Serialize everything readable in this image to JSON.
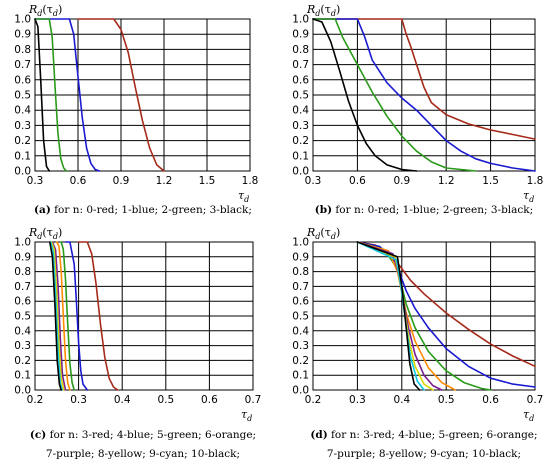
{
  "palette": {
    "red": "#a52a1a",
    "blue": "#1a1ad0",
    "green": "#2a9a1a",
    "black": "#000000",
    "orange": "#ff8c00",
    "purple": "#7a1f8f",
    "yellow": "#d8d800",
    "cyan": "#10c8e0"
  },
  "chart_data": [
    {
      "id": "a",
      "type": "line",
      "ylabel_main": "R",
      "ylabel_sub": "d",
      "ylabel_arg": "(τ",
      "ylabel_arg_sub": "d",
      "ylabel_close": ")",
      "xlabel_main": "τ",
      "xlabel_sub": "d",
      "xlim": [
        0.3,
        1.8
      ],
      "ylim": [
        0,
        1.0
      ],
      "xticks": [
        "0.3",
        "0.6",
        "0.9",
        "1.2",
        "1.5",
        "1.8"
      ],
      "yticks": [
        "0.0",
        "0.1",
        "0.2",
        "0.3",
        "0.4",
        "0.5",
        "0.6",
        "0.7",
        "0.8",
        "0.9",
        "1.0"
      ],
      "caption_label": "(a)",
      "caption_text": " for n: 0-red; 1-blue; 2-green; 3-black;",
      "series": [
        {
          "color": "red",
          "x": [
            0.6,
            0.85,
            0.9,
            0.95,
            1.0,
            1.05,
            1.1,
            1.15,
            1.2
          ],
          "y": [
            1.0,
            1.0,
            0.93,
            0.78,
            0.55,
            0.33,
            0.15,
            0.04,
            0.0
          ]
        },
        {
          "color": "blue",
          "x": [
            0.3,
            0.54,
            0.57,
            0.6,
            0.63,
            0.66,
            0.69,
            0.72,
            0.75
          ],
          "y": [
            1.0,
            1.0,
            0.9,
            0.62,
            0.35,
            0.15,
            0.05,
            0.01,
            0.0
          ]
        },
        {
          "color": "green",
          "x": [
            0.3,
            0.4,
            0.42,
            0.44,
            0.46,
            0.48,
            0.5,
            0.52
          ],
          "y": [
            1.0,
            1.0,
            0.88,
            0.55,
            0.25,
            0.08,
            0.02,
            0.0
          ]
        },
        {
          "color": "black",
          "x": [
            0.3,
            0.32,
            0.34,
            0.36,
            0.38,
            0.4
          ],
          "y": [
            1.0,
            0.95,
            0.6,
            0.2,
            0.03,
            0.0
          ]
        }
      ]
    },
    {
      "id": "b",
      "type": "line",
      "ylabel_main": "R",
      "ylabel_sub": "d",
      "ylabel_arg": "(τ",
      "ylabel_arg_sub": "d",
      "ylabel_close": ")",
      "xlabel_main": "τ",
      "xlabel_sub": "d",
      "xlim": [
        0.3,
        1.8
      ],
      "ylim": [
        0,
        1.0
      ],
      "xticks": [
        "0.3",
        "0.6",
        "0.9",
        "1.2",
        "1.5",
        "1.8"
      ],
      "yticks": [
        "0.0",
        "0.1",
        "0.2",
        "0.3",
        "0.4",
        "0.5",
        "0.6",
        "0.7",
        "0.8",
        "0.9",
        "1.0"
      ],
      "caption_label": "(b)",
      "caption_text": " for n: 0-red; 1-blue; 2-green; 3-black;",
      "series": [
        {
          "color": "red",
          "x": [
            0.3,
            0.9,
            0.93,
            0.96,
            1.0,
            1.05,
            1.1,
            1.2,
            1.35,
            1.5,
            1.65,
            1.8
          ],
          "y": [
            1.0,
            1.0,
            0.9,
            0.82,
            0.7,
            0.55,
            0.45,
            0.37,
            0.31,
            0.27,
            0.24,
            0.21
          ]
        },
        {
          "color": "blue",
          "x": [
            0.3,
            0.6,
            0.65,
            0.7,
            0.8,
            0.9,
            1.0,
            1.1,
            1.2,
            1.3,
            1.4,
            1.5,
            1.65,
            1.8
          ],
          "y": [
            1.0,
            1.0,
            0.88,
            0.73,
            0.58,
            0.48,
            0.4,
            0.3,
            0.2,
            0.13,
            0.08,
            0.05,
            0.02,
            0.0
          ]
        },
        {
          "color": "green",
          "x": [
            0.3,
            0.45,
            0.5,
            0.6,
            0.7,
            0.8,
            0.9,
            1.0,
            1.1,
            1.2,
            1.3,
            1.4
          ],
          "y": [
            1.0,
            1.0,
            0.88,
            0.7,
            0.52,
            0.36,
            0.23,
            0.13,
            0.06,
            0.02,
            0.01,
            0.0
          ]
        },
        {
          "color": "black",
          "x": [
            0.3,
            0.36,
            0.42,
            0.48,
            0.54,
            0.6,
            0.66,
            0.72,
            0.8,
            0.9,
            1.0
          ],
          "y": [
            1.0,
            0.98,
            0.85,
            0.66,
            0.46,
            0.3,
            0.18,
            0.1,
            0.04,
            0.01,
            0.0
          ]
        }
      ]
    },
    {
      "id": "c",
      "type": "line",
      "ylabel_main": "R",
      "ylabel_sub": "d",
      "ylabel_arg": "(τ",
      "ylabel_arg_sub": "d",
      "ylabel_close": ")",
      "xlabel_main": "τ",
      "xlabel_sub": "d",
      "xlim": [
        0.2,
        0.7
      ],
      "ylim": [
        0,
        1.0
      ],
      "xticks": [
        "0.2",
        "0.3",
        "0.4",
        "0.5",
        "0.6",
        "0.7"
      ],
      "yticks": [
        "0.0",
        "0.1",
        "0.2",
        "0.3",
        "0.4",
        "0.5",
        "0.6",
        "0.7",
        "0.8",
        "0.9",
        "1.0"
      ],
      "caption_label": "(c)",
      "caption_text": " for n: 3-red; 4-blue; 5-green; 6-orange;",
      "caption_line2": "7-purple; 8-yellow; 9-cyan; 10-black;",
      "series": [
        {
          "color": "red",
          "x": [
            0.3,
            0.32,
            0.33,
            0.34,
            0.35,
            0.36,
            0.37,
            0.38,
            0.39
          ],
          "y": [
            1.0,
            1.0,
            0.92,
            0.72,
            0.45,
            0.22,
            0.08,
            0.02,
            0.0
          ]
        },
        {
          "color": "blue",
          "x": [
            0.27,
            0.28,
            0.29,
            0.295,
            0.3,
            0.305,
            0.31,
            0.32
          ],
          "y": [
            1.0,
            1.0,
            0.85,
            0.6,
            0.32,
            0.13,
            0.04,
            0.0
          ]
        },
        {
          "color": "green",
          "x": [
            0.26,
            0.265,
            0.27,
            0.275,
            0.28,
            0.285,
            0.29
          ],
          "y": [
            1.0,
            0.95,
            0.75,
            0.45,
            0.18,
            0.05,
            0.0
          ]
        },
        {
          "color": "orange",
          "x": [
            0.25,
            0.255,
            0.26,
            0.265,
            0.27,
            0.275,
            0.28
          ],
          "y": [
            1.0,
            0.97,
            0.8,
            0.5,
            0.2,
            0.05,
            0.0
          ]
        },
        {
          "color": "purple",
          "x": [
            0.24,
            0.247,
            0.253,
            0.258,
            0.263,
            0.27
          ],
          "y": [
            1.0,
            0.95,
            0.7,
            0.35,
            0.1,
            0.0
          ]
        },
        {
          "color": "yellow",
          "x": [
            0.238,
            0.244,
            0.25,
            0.255,
            0.26,
            0.266
          ],
          "y": [
            1.0,
            0.95,
            0.65,
            0.3,
            0.08,
            0.0
          ]
        },
        {
          "color": "cyan",
          "x": [
            0.236,
            0.242,
            0.248,
            0.253,
            0.258,
            0.262
          ],
          "y": [
            1.0,
            0.93,
            0.6,
            0.25,
            0.05,
            0.0
          ]
        },
        {
          "color": "black",
          "x": [
            0.234,
            0.24,
            0.246,
            0.251,
            0.256,
            0.26
          ],
          "y": [
            1.0,
            0.9,
            0.55,
            0.2,
            0.04,
            0.0
          ]
        }
      ]
    },
    {
      "id": "d",
      "type": "line",
      "ylabel_main": "R",
      "ylabel_sub": "d",
      "ylabel_arg": "(τ",
      "ylabel_arg_sub": "d",
      "ylabel_close": ")",
      "xlabel_main": "τ",
      "xlabel_sub": "d",
      "xlim": [
        0.2,
        0.7
      ],
      "ylim": [
        0,
        1.0
      ],
      "xticks": [
        "0.2",
        "0.3",
        "0.4",
        "0.5",
        "0.6",
        "0.7"
      ],
      "yticks": [
        "0.0",
        "0.1",
        "0.2",
        "0.3",
        "0.4",
        "0.5",
        "0.6",
        "0.7",
        "0.8",
        "0.9",
        "1.0"
      ],
      "caption_label": "(d)",
      "caption_text": " for n: 3-red; 4-blue; 5-green; 6-orange;",
      "caption_line2": "7-purple; 8-yellow; 9-cyan; 10-black;",
      "series": [
        {
          "color": "red",
          "x": [
            0.3,
            0.34,
            0.38,
            0.4,
            0.42,
            0.45,
            0.5,
            0.55,
            0.6,
            0.65,
            0.7
          ],
          "y": [
            1.0,
            0.98,
            0.9,
            0.82,
            0.74,
            0.65,
            0.52,
            0.41,
            0.31,
            0.23,
            0.16
          ]
        },
        {
          "color": "blue",
          "x": [
            0.3,
            0.35,
            0.39,
            0.4,
            0.41,
            0.43,
            0.46,
            0.5,
            0.55,
            0.6,
            0.65,
            0.7
          ],
          "y": [
            1.0,
            0.97,
            0.85,
            0.75,
            0.67,
            0.55,
            0.42,
            0.28,
            0.16,
            0.08,
            0.04,
            0.02
          ]
        },
        {
          "color": "green",
          "x": [
            0.3,
            0.36,
            0.39,
            0.4,
            0.41,
            0.43,
            0.46,
            0.5,
            0.54,
            0.58,
            0.6
          ],
          "y": [
            1.0,
            0.95,
            0.82,
            0.7,
            0.58,
            0.42,
            0.26,
            0.13,
            0.05,
            0.01,
            0.0
          ]
        },
        {
          "color": "orange",
          "x": [
            0.3,
            0.37,
            0.39,
            0.4,
            0.41,
            0.43,
            0.46,
            0.49,
            0.52
          ],
          "y": [
            1.0,
            0.94,
            0.8,
            0.66,
            0.52,
            0.33,
            0.15,
            0.05,
            0.0
          ]
        },
        {
          "color": "purple",
          "x": [
            0.3,
            0.38,
            0.395,
            0.405,
            0.415,
            0.43,
            0.45,
            0.47,
            0.49
          ],
          "y": [
            1.0,
            0.92,
            0.76,
            0.58,
            0.42,
            0.24,
            0.1,
            0.03,
            0.0
          ]
        },
        {
          "color": "yellow",
          "x": [
            0.3,
            0.385,
            0.398,
            0.407,
            0.417,
            0.43,
            0.45,
            0.47
          ],
          "y": [
            1.0,
            0.9,
            0.72,
            0.52,
            0.33,
            0.16,
            0.04,
            0.0
          ]
        },
        {
          "color": "cyan",
          "x": [
            0.3,
            0.388,
            0.4,
            0.41,
            0.42,
            0.435,
            0.45
          ],
          "y": [
            1.0,
            0.88,
            0.66,
            0.43,
            0.22,
            0.06,
            0.0
          ]
        },
        {
          "color": "black",
          "x": [
            0.3,
            0.39,
            0.4,
            0.41,
            0.418,
            0.428,
            0.44
          ],
          "y": [
            1.0,
            0.9,
            0.7,
            0.42,
            0.18,
            0.04,
            0.0
          ]
        }
      ]
    }
  ]
}
